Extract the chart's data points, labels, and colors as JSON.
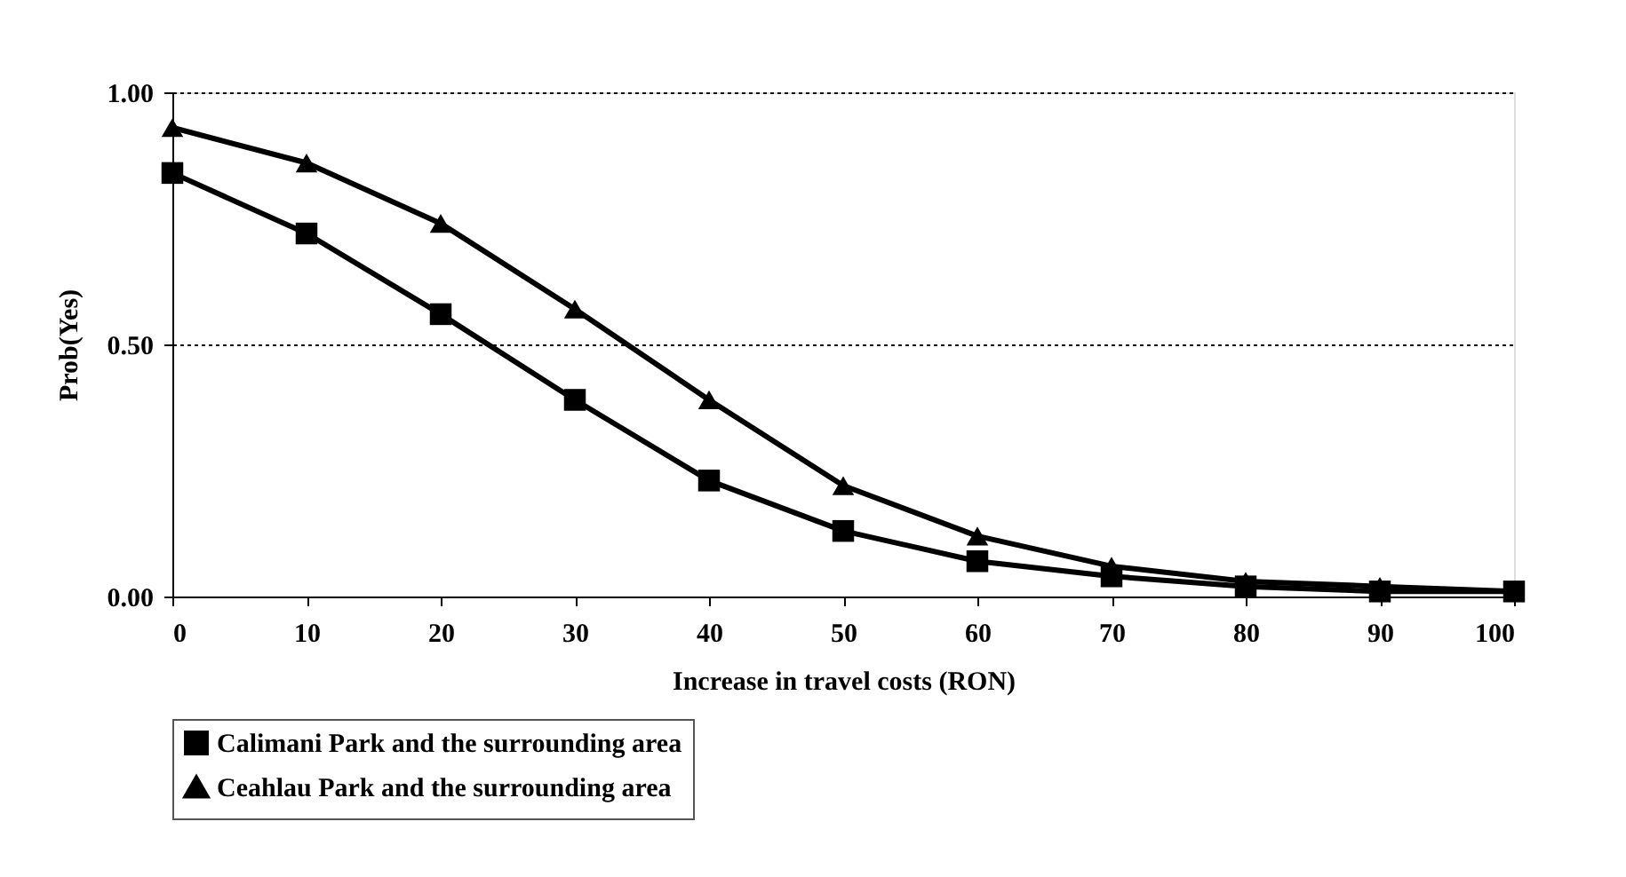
{
  "chart_data": {
    "type": "line",
    "xlabel": "Increase in travel costs (RON)",
    "ylabel": "Prob(Yes)",
    "x": [
      0,
      10,
      20,
      30,
      40,
      50,
      60,
      70,
      80,
      90,
      100
    ],
    "series": [
      {
        "name": "Calimani Park and the surrounding area",
        "color": "#000000",
        "marker": "square",
        "values": [
          0.84,
          0.72,
          0.56,
          0.39,
          0.23,
          0.13,
          0.07,
          0.04,
          0.02,
          0.01,
          0.01
        ]
      },
      {
        "name": "Ceahlau Park and the surrounding area",
        "color": "#000000",
        "marker": "triangle",
        "values": [
          0.93,
          0.86,
          0.74,
          0.57,
          0.39,
          0.22,
          0.12,
          0.06,
          0.03,
          0.02,
          0.01
        ]
      }
    ],
    "xlim": [
      0,
      100
    ],
    "xticks": [
      0,
      10,
      20,
      30,
      40,
      50,
      60,
      70,
      80,
      90,
      100
    ],
    "ylim": [
      0,
      1
    ],
    "yticks": [
      {
        "value": 0,
        "label": "0.00"
      },
      {
        "value": 0.5,
        "label": "0.50"
      },
      {
        "value": 1,
        "label": "1.00"
      }
    ],
    "grid": "y",
    "legend": "bottom",
    "line_style": "solid"
  }
}
